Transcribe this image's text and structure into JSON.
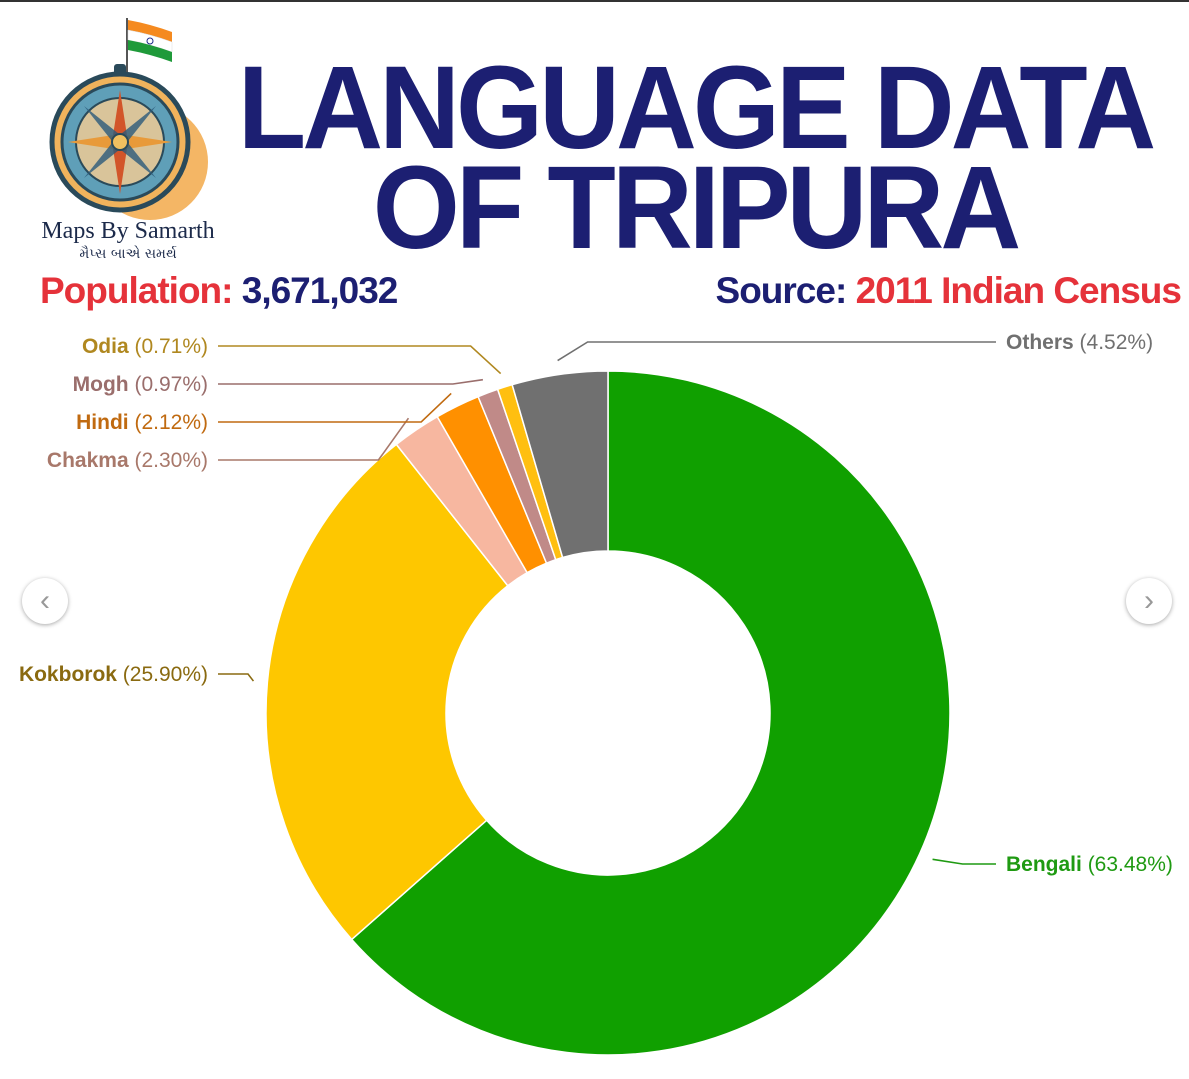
{
  "header": {
    "title_line1": "LANGUAGE DATA",
    "title_line2": "OF TRIPURA",
    "brand_name": "Maps By Samarth",
    "brand_name_local": "મૈપ્સ બાએ સમર્થ",
    "population_label": "Population:",
    "population_value": "3,671,032",
    "source_label": "Source:",
    "source_value": "2011 Indian Census"
  },
  "colors": {
    "title": "#1c1f72",
    "accent_red": "#e5323a"
  },
  "nav": {
    "prev_icon": "chevron-left-icon",
    "next_icon": "chevron-right-icon",
    "prev_glyph": "‹",
    "next_glyph": "›"
  },
  "chart_data": {
    "type": "pie",
    "variant": "donut",
    "slices": [
      {
        "name": "Bengali",
        "value": 63.48,
        "label": "(63.48%)",
        "color": "#10a000",
        "label_color": "#1f9a12"
      },
      {
        "name": "Kokborok",
        "value": 25.9,
        "label": "(25.90%)",
        "color": "#fec700",
        "label_color": "#8a6a10"
      },
      {
        "name": "Chakma",
        "value": 2.3,
        "label": "(2.30%)",
        "color": "#f7b7a0",
        "label_color": "#a8786a"
      },
      {
        "name": "Hindi",
        "value": 2.12,
        "label": "(2.12%)",
        "color": "#ff9000",
        "label_color": "#c06a10"
      },
      {
        "name": "Mogh",
        "value": 0.97,
        "label": "(0.97%)",
        "color": "#c08a88",
        "label_color": "#9a6e6c"
      },
      {
        "name": "Odia",
        "value": 0.71,
        "label": "(0.71%)",
        "color": "#ffbf10",
        "label_color": "#b08820"
      },
      {
        "name": "Others",
        "value": 4.52,
        "label": "(4.52%)",
        "color": "#707070",
        "label_color": "#707070"
      }
    ]
  }
}
